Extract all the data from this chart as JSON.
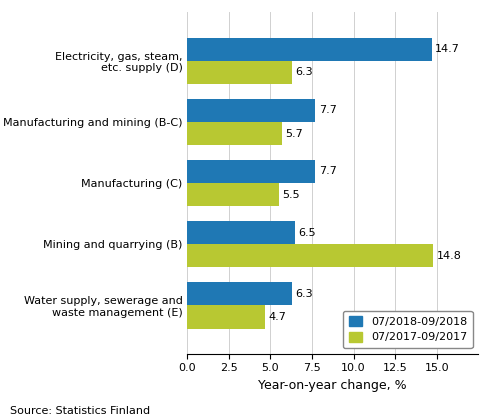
{
  "categories": [
    "Electricity, gas, steam,\netc. supply (D)",
    "Manufacturing and mining (B-C)",
    "Manufacturing (C)",
    "Mining and quarrying (B)",
    "Water supply, sewerage and\nwaste management (E)"
  ],
  "series_2018": [
    14.7,
    7.7,
    7.7,
    6.5,
    6.3
  ],
  "series_2017": [
    6.3,
    5.7,
    5.5,
    14.8,
    4.7
  ],
  "color_2018": "#1f78b4",
  "color_2017": "#b8c832",
  "legend_2018": "07/2018-09/2018",
  "legend_2017": "07/2017-09/2017",
  "xlabel": "Year-on-year change, %",
  "xlim": [
    0,
    17.5
  ],
  "xticks": [
    0.0,
    2.5,
    5.0,
    7.5,
    10.0,
    12.5,
    15.0
  ],
  "xtick_labels": [
    "0.0",
    "2.5",
    "5.0",
    "7.5",
    "10.0",
    "12.5",
    "15.0"
  ],
  "source": "Source: Statistics Finland",
  "bar_height": 0.38,
  "label_fontsize": 8,
  "tick_fontsize": 8,
  "xlabel_fontsize": 9,
  "source_fontsize": 8,
  "background_color": "#ffffff"
}
